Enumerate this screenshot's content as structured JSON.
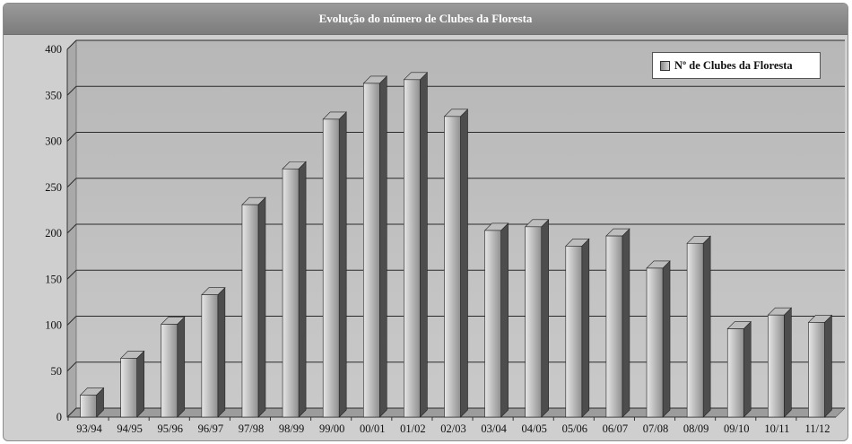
{
  "chart_data": {
    "type": "bar",
    "title": "Evolução do número de Clubes da Floresta",
    "categories": [
      "93/94",
      "94/95",
      "95/96",
      "96/97",
      "97/98",
      "98/99",
      "99/00",
      "00/01",
      "01/02",
      "02/03",
      "03/04",
      "04/05",
      "05/06",
      "06/07",
      "07/08",
      "08/09",
      "09/10",
      "10/11",
      "11/12"
    ],
    "series": [
      {
        "name": "Nº de Clubes da Floresta",
        "values": [
          24,
          64,
          101,
          133,
          231,
          270,
          324,
          363,
          367,
          327,
          203,
          207,
          186,
          197,
          162,
          189,
          96,
          111,
          103
        ]
      }
    ],
    "yticks": [
      0,
      50,
      100,
      150,
      200,
      250,
      300,
      350,
      400
    ],
    "ylim": [
      0,
      400
    ],
    "xlabel": "",
    "ylabel": "",
    "grid": true,
    "legend_position": "top-right",
    "colors": {
      "bar_light": "#e6e6e6",
      "bar_dark": "#8f8f8f",
      "bar_side": "#4d4d4d",
      "bar_top": "#bdbdbd",
      "plot_bg": "#bdbdbd",
      "grid": "#2a2a2a"
    }
  }
}
